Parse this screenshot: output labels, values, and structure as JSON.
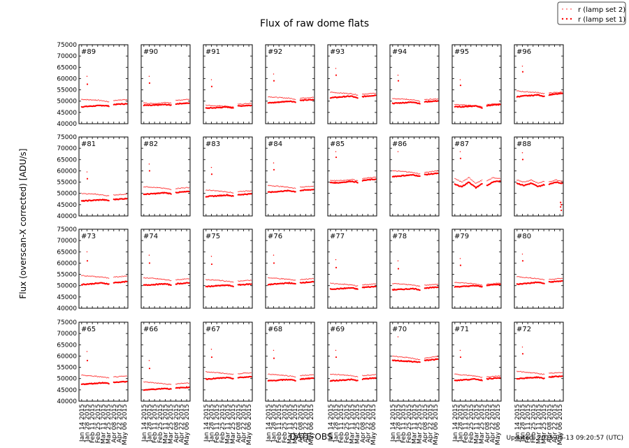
{
  "chart_data": {
    "type": "scatter",
    "title": "Flux of raw dome flats",
    "xlabel": "DATE-OBS",
    "ylabel": "Flux (overscan-X corrected) [ADU/s]",
    "footer": "Updated: 2015-05-13 09:20:57 (UTC)",
    "ylim": [
      40000,
      75000
    ],
    "xlim": [
      "2015-01-07",
      "2015-05-15"
    ],
    "grid": false,
    "legend_placement": "top-right",
    "yticks": [
      "40000",
      "45000",
      "50000",
      "55000",
      "60000",
      "65000",
      "70000",
      "75000"
    ],
    "xticks": [
      {
        "date": "2015-01-14",
        "label": "Jan 14 2015"
      },
      {
        "date": "2015-01-28",
        "label": "Jan 28 2015"
      },
      {
        "date": "2015-02-11",
        "label": "Feb 11 2015"
      },
      {
        "date": "2015-02-25",
        "label": "Feb 25 2015"
      },
      {
        "date": "2015-03-11",
        "label": "Mar 11 2015"
      },
      {
        "date": "2015-03-25",
        "label": "Mar 25 2015"
      },
      {
        "date": "2015-04-08",
        "label": "Apr 08 2015"
      },
      {
        "date": "2015-04-22",
        "label": "Apr 22 2015"
      },
      {
        "date": "2015-05-06",
        "label": "May 06 2015"
      }
    ],
    "legend": [
      {
        "name": "r (lamp set 2)",
        "color": "#ff0000",
        "marker": "small-dot"
      },
      {
        "name": "r (lamp set 1)",
        "color": "#ff0000",
        "marker": "dot"
      }
    ],
    "dates": [
      "2015-01-14",
      "2015-02-01",
      "2015-02-20",
      "2015-03-10",
      "2015-03-28",
      "2015-04-08",
      "2015-04-24",
      "2015-05-12"
    ],
    "outlier_date": "2015-01-28",
    "panels": [
      {
        "label": "#89",
        "set2": [
          50800,
          50600,
          50500,
          50200,
          49600,
          50300,
          50500,
          50700
        ],
        "set1": [
          47500,
          47700,
          47900,
          48100,
          47800,
          48500,
          48700,
          48800
        ],
        "outliers": [
          61000,
          57500
        ]
      },
      {
        "label": "#90",
        "set2": [
          49200,
          49000,
          49000,
          49500,
          49000,
          50400,
          50600,
          50800
        ],
        "set1": [
          48200,
          48100,
          48300,
          48500,
          48200,
          48800,
          49000,
          49100
        ],
        "outliers": [
          61000,
          58000
        ]
      },
      {
        "label": "#91",
        "set2": [
          48200,
          48000,
          47900,
          47800,
          47300,
          48600,
          48800,
          49000
        ],
        "set1": [
          46900,
          47000,
          47200,
          47400,
          47000,
          47800,
          48000,
          48100
        ],
        "outliers": [
          59500,
          56500
        ]
      },
      {
        "label": "#92",
        "set2": [
          52000,
          51700,
          51500,
          51300,
          50800,
          51300,
          51500,
          51700
        ],
        "set1": [
          49200,
          49400,
          49700,
          50000,
          49600,
          50300,
          50500,
          50600
        ],
        "outliers": [
          62000,
          59000
        ]
      },
      {
        "label": "#93",
        "set2": [
          54000,
          53700,
          53500,
          53300,
          52700,
          53100,
          53300,
          53500
        ],
        "set1": [
          51500,
          51700,
          52000,
          52200,
          51200,
          52000,
          52300,
          52600
        ],
        "outliers": [
          64500,
          61500
        ]
      },
      {
        "label": "#94",
        "set2": [
          51200,
          51000,
          50800,
          50500,
          49800,
          50600,
          50800,
          51000
        ],
        "set1": [
          49000,
          49200,
          49400,
          49600,
          48800,
          49700,
          49900,
          50100
        ],
        "outliers": [
          61500,
          59000
        ]
      },
      {
        "label": "#95",
        "set2": [
          48500,
          48300,
          48200,
          48000,
          47400,
          48500,
          48700,
          48900
        ],
        "set1": [
          47500,
          47500,
          47700,
          47900,
          47000,
          48000,
          48300,
          48500
        ],
        "outliers": [
          59500,
          57000
        ]
      },
      {
        "label": "#96",
        "set2": [
          54500,
          54200,
          54000,
          53800,
          53300,
          53600,
          53800,
          54000
        ],
        "set1": [
          52000,
          52300,
          52500,
          52800,
          52000,
          52800,
          53100,
          53400
        ],
        "outliers": [
          65500,
          63000
        ]
      },
      {
        "label": "#81",
        "set2": [
          50000,
          49800,
          49600,
          49300,
          48800,
          49300,
          49500,
          49700
        ],
        "set1": [
          46600,
          46800,
          47000,
          47200,
          46800,
          47300,
          47500,
          47700
        ],
        "outliers": [
          59500,
          56500
        ]
      },
      {
        "label": "#82",
        "set2": [
          53000,
          52800,
          52500,
          52200,
          51700,
          52200,
          52400,
          52600
        ],
        "set1": [
          49600,
          49800,
          50000,
          50300,
          49800,
          50400,
          50600,
          50800
        ],
        "outliers": [
          63000,
          60000
        ]
      },
      {
        "label": "#83",
        "set2": [
          51500,
          51300,
          51000,
          50700,
          50200,
          50800,
          51000,
          51200
        ],
        "set1": [
          48600,
          48800,
          49000,
          49300,
          48700,
          49400,
          49600,
          49800
        ],
        "outliers": [
          61500,
          58500
        ]
      },
      {
        "label": "#84",
        "set2": [
          53500,
          53300,
          53000,
          52700,
          52200,
          52800,
          53000,
          53200
        ],
        "set1": [
          50500,
          50700,
          51000,
          51200,
          50700,
          51300,
          51500,
          51700
        ],
        "outliers": [
          63500,
          60500
        ]
      },
      {
        "label": "#85",
        "set2": [
          55800,
          55600,
          55800,
          56200,
          55600,
          56600,
          56900,
          57200
        ],
        "set1": [
          54800,
          54700,
          55000,
          55400,
          54800,
          55700,
          56000,
          56300
        ],
        "outliers": [
          68500,
          66000
        ]
      },
      {
        "label": "#86",
        "set2": [
          60000,
          59800,
          59600,
          59200,
          58500,
          59300,
          59600,
          60000
        ],
        "set1": [
          57500,
          57700,
          58000,
          58200,
          57500,
          58300,
          58600,
          58900
        ],
        "outliers": [
          68500
        ]
      },
      {
        "label": "#87",
        "set2": [
          56500,
          55000,
          57000,
          54500,
          56000,
          55500,
          57000,
          56500
        ],
        "set1": [
          54000,
          53000,
          55000,
          52500,
          54500,
          53500,
          55000,
          55500
        ],
        "outliers": [
          68500,
          65500
        ]
      },
      {
        "label": "#88",
        "set2": [
          56000,
          55000,
          56000,
          54500,
          55500,
          55000,
          56000,
          55500
        ],
        "set1": [
          54500,
          53500,
          54500,
          53000,
          54000,
          54000,
          55000,
          54500
        ],
        "outliers": [
          68000,
          65000
        ],
        "late_outliers": [
          46000,
          45000,
          44000,
          42500
        ]
      },
      {
        "label": "#73",
        "set2": [
          54500,
          54300,
          54000,
          53800,
          53300,
          53800,
          54000,
          54300
        ],
        "set1": [
          50500,
          50700,
          51000,
          51200,
          50600,
          51300,
          51500,
          51800
        ],
        "outliers": [
          65000,
          61000
        ]
      },
      {
        "label": "#74",
        "set2": [
          53500,
          53300,
          53000,
          52700,
          52200,
          52600,
          52800,
          53000
        ],
        "set1": [
          50200,
          50400,
          50600,
          50800,
          50200,
          50800,
          51000,
          51200
        ],
        "outliers": [
          63500,
          60000
        ]
      },
      {
        "label": "#75",
        "set2": [
          52700,
          52500,
          52300,
          52000,
          51500,
          52000,
          52200,
          52400
        ],
        "set1": [
          49600,
          49800,
          50000,
          50200,
          49700,
          50300,
          50500,
          50700
        ],
        "outliers": [
          63000,
          59500
        ]
      },
      {
        "label": "#76",
        "set2": [
          53500,
          53300,
          53000,
          52800,
          52300,
          52700,
          52900,
          53100
        ],
        "set1": [
          50500,
          50700,
          51000,
          51200,
          50700,
          51300,
          51500,
          51700
        ],
        "outliers": [
          63500,
          60000
        ]
      },
      {
        "label": "#77",
        "set2": [
          51000,
          50800,
          50600,
          50300,
          49800,
          50300,
          50500,
          50800
        ],
        "set1": [
          48500,
          48600,
          48800,
          49000,
          48400,
          49200,
          49400,
          49600
        ],
        "outliers": [
          61500,
          58000
        ]
      },
      {
        "label": "#78",
        "set2": [
          51000,
          50800,
          50500,
          50200,
          49700,
          50200,
          50400,
          50600
        ],
        "set1": [
          48200,
          48300,
          48500,
          48700,
          48100,
          48900,
          49100,
          49300
        ],
        "outliers": [
          61000,
          57500
        ]
      },
      {
        "label": "#79",
        "set2": [
          51500,
          51300,
          51000,
          50700,
          50200,
          50700,
          50900,
          51100
        ],
        "set1": [
          49500,
          49600,
          49800,
          50000,
          49400,
          50200,
          50400,
          50600
        ],
        "outliers": [
          62000,
          59000
        ]
      },
      {
        "label": "#80",
        "set2": [
          54000,
          53700,
          53400,
          53100,
          52600,
          52800,
          53000,
          53200
        ],
        "set1": [
          50600,
          50900,
          51200,
          51500,
          50900,
          51600,
          51800,
          52100
        ],
        "outliers": [
          64000,
          61000
        ]
      },
      {
        "label": "#65",
        "set2": [
          51500,
          51300,
          51000,
          50700,
          50200,
          50700,
          50900,
          51100
        ],
        "set1": [
          47500,
          47700,
          47900,
          48200,
          47800,
          48300,
          48500,
          48700
        ],
        "outliers": [
          62000,
          58000
        ]
      },
      {
        "label": "#66",
        "set2": [
          48500,
          48300,
          48000,
          47700,
          47300,
          47700,
          47900,
          48000
        ],
        "set1": [
          45000,
          45200,
          45400,
          45700,
          45300,
          45800,
          46000,
          46200
        ],
        "outliers": [
          58000,
          54500
        ]
      },
      {
        "label": "#67",
        "set2": [
          53000,
          52800,
          52500,
          52200,
          51800,
          52200,
          52400,
          52600
        ],
        "set1": [
          49800,
          50000,
          50200,
          50400,
          50000,
          50400,
          50600,
          50800
        ],
        "outliers": [
          63000,
          59500
        ]
      },
      {
        "label": "#68",
        "set2": [
          52000,
          51800,
          51500,
          51200,
          50800,
          51300,
          51500,
          51700
        ],
        "set1": [
          49000,
          49200,
          49400,
          49600,
          49100,
          49800,
          50000,
          50200
        ],
        "outliers": [
          62500,
          59000
        ]
      },
      {
        "label": "#69",
        "set2": [
          52000,
          51800,
          51600,
          51300,
          50800,
          51300,
          51500,
          51800
        ],
        "set1": [
          49000,
          49200,
          49400,
          49600,
          49000,
          49800,
          50000,
          50300
        ],
        "outliers": [
          62500,
          59500
        ]
      },
      {
        "label": "#70",
        "set2": [
          60000,
          59700,
          59300,
          58900,
          58300,
          59100,
          59400,
          59800
        ],
        "set1": [
          58000,
          57900,
          57700,
          57500,
          57300,
          58000,
          58300,
          58600
        ],
        "outliers": [
          68500
        ]
      },
      {
        "label": "#71",
        "set2": [
          52000,
          51700,
          51400,
          51100,
          50500,
          50800,
          51000,
          51200
        ],
        "set1": [
          49200,
          49400,
          49600,
          49800,
          49200,
          49900,
          50100,
          50300
        ],
        "outliers": [
          62500,
          59500
        ]
      },
      {
        "label": "#72",
        "set2": [
          53200,
          52900,
          52600,
          52300,
          51800,
          52300,
          52500,
          52700
        ],
        "set1": [
          50000,
          50200,
          50400,
          50600,
          50000,
          50700,
          50900,
          51100
        ],
        "outliers": [
          64000,
          61000
        ]
      }
    ]
  }
}
